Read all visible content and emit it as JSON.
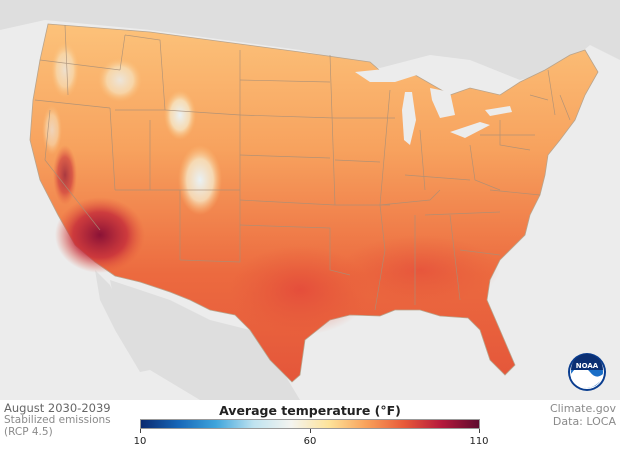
{
  "caption": {
    "title": "August 2030-2039",
    "scenario_line1": "Stabilized emissions",
    "scenario_line2": "(RCP 4.5)"
  },
  "credits": {
    "site": "Climate.gov",
    "data_source": "Data: LOCA"
  },
  "legend": {
    "title": "Average temperature (°F)",
    "min_label": "10",
    "mid_label": "60",
    "max_label": "110",
    "min": 10,
    "max": 110,
    "colors": [
      "#0b2a6f",
      "#1767b8",
      "#3fa5dc",
      "#bfe3f0",
      "#f4f4f0",
      "#fde39a",
      "#f9a15a",
      "#e85a3a",
      "#b5193c",
      "#5e0b2e"
    ]
  },
  "logo": {
    "text": "NOAA"
  }
}
